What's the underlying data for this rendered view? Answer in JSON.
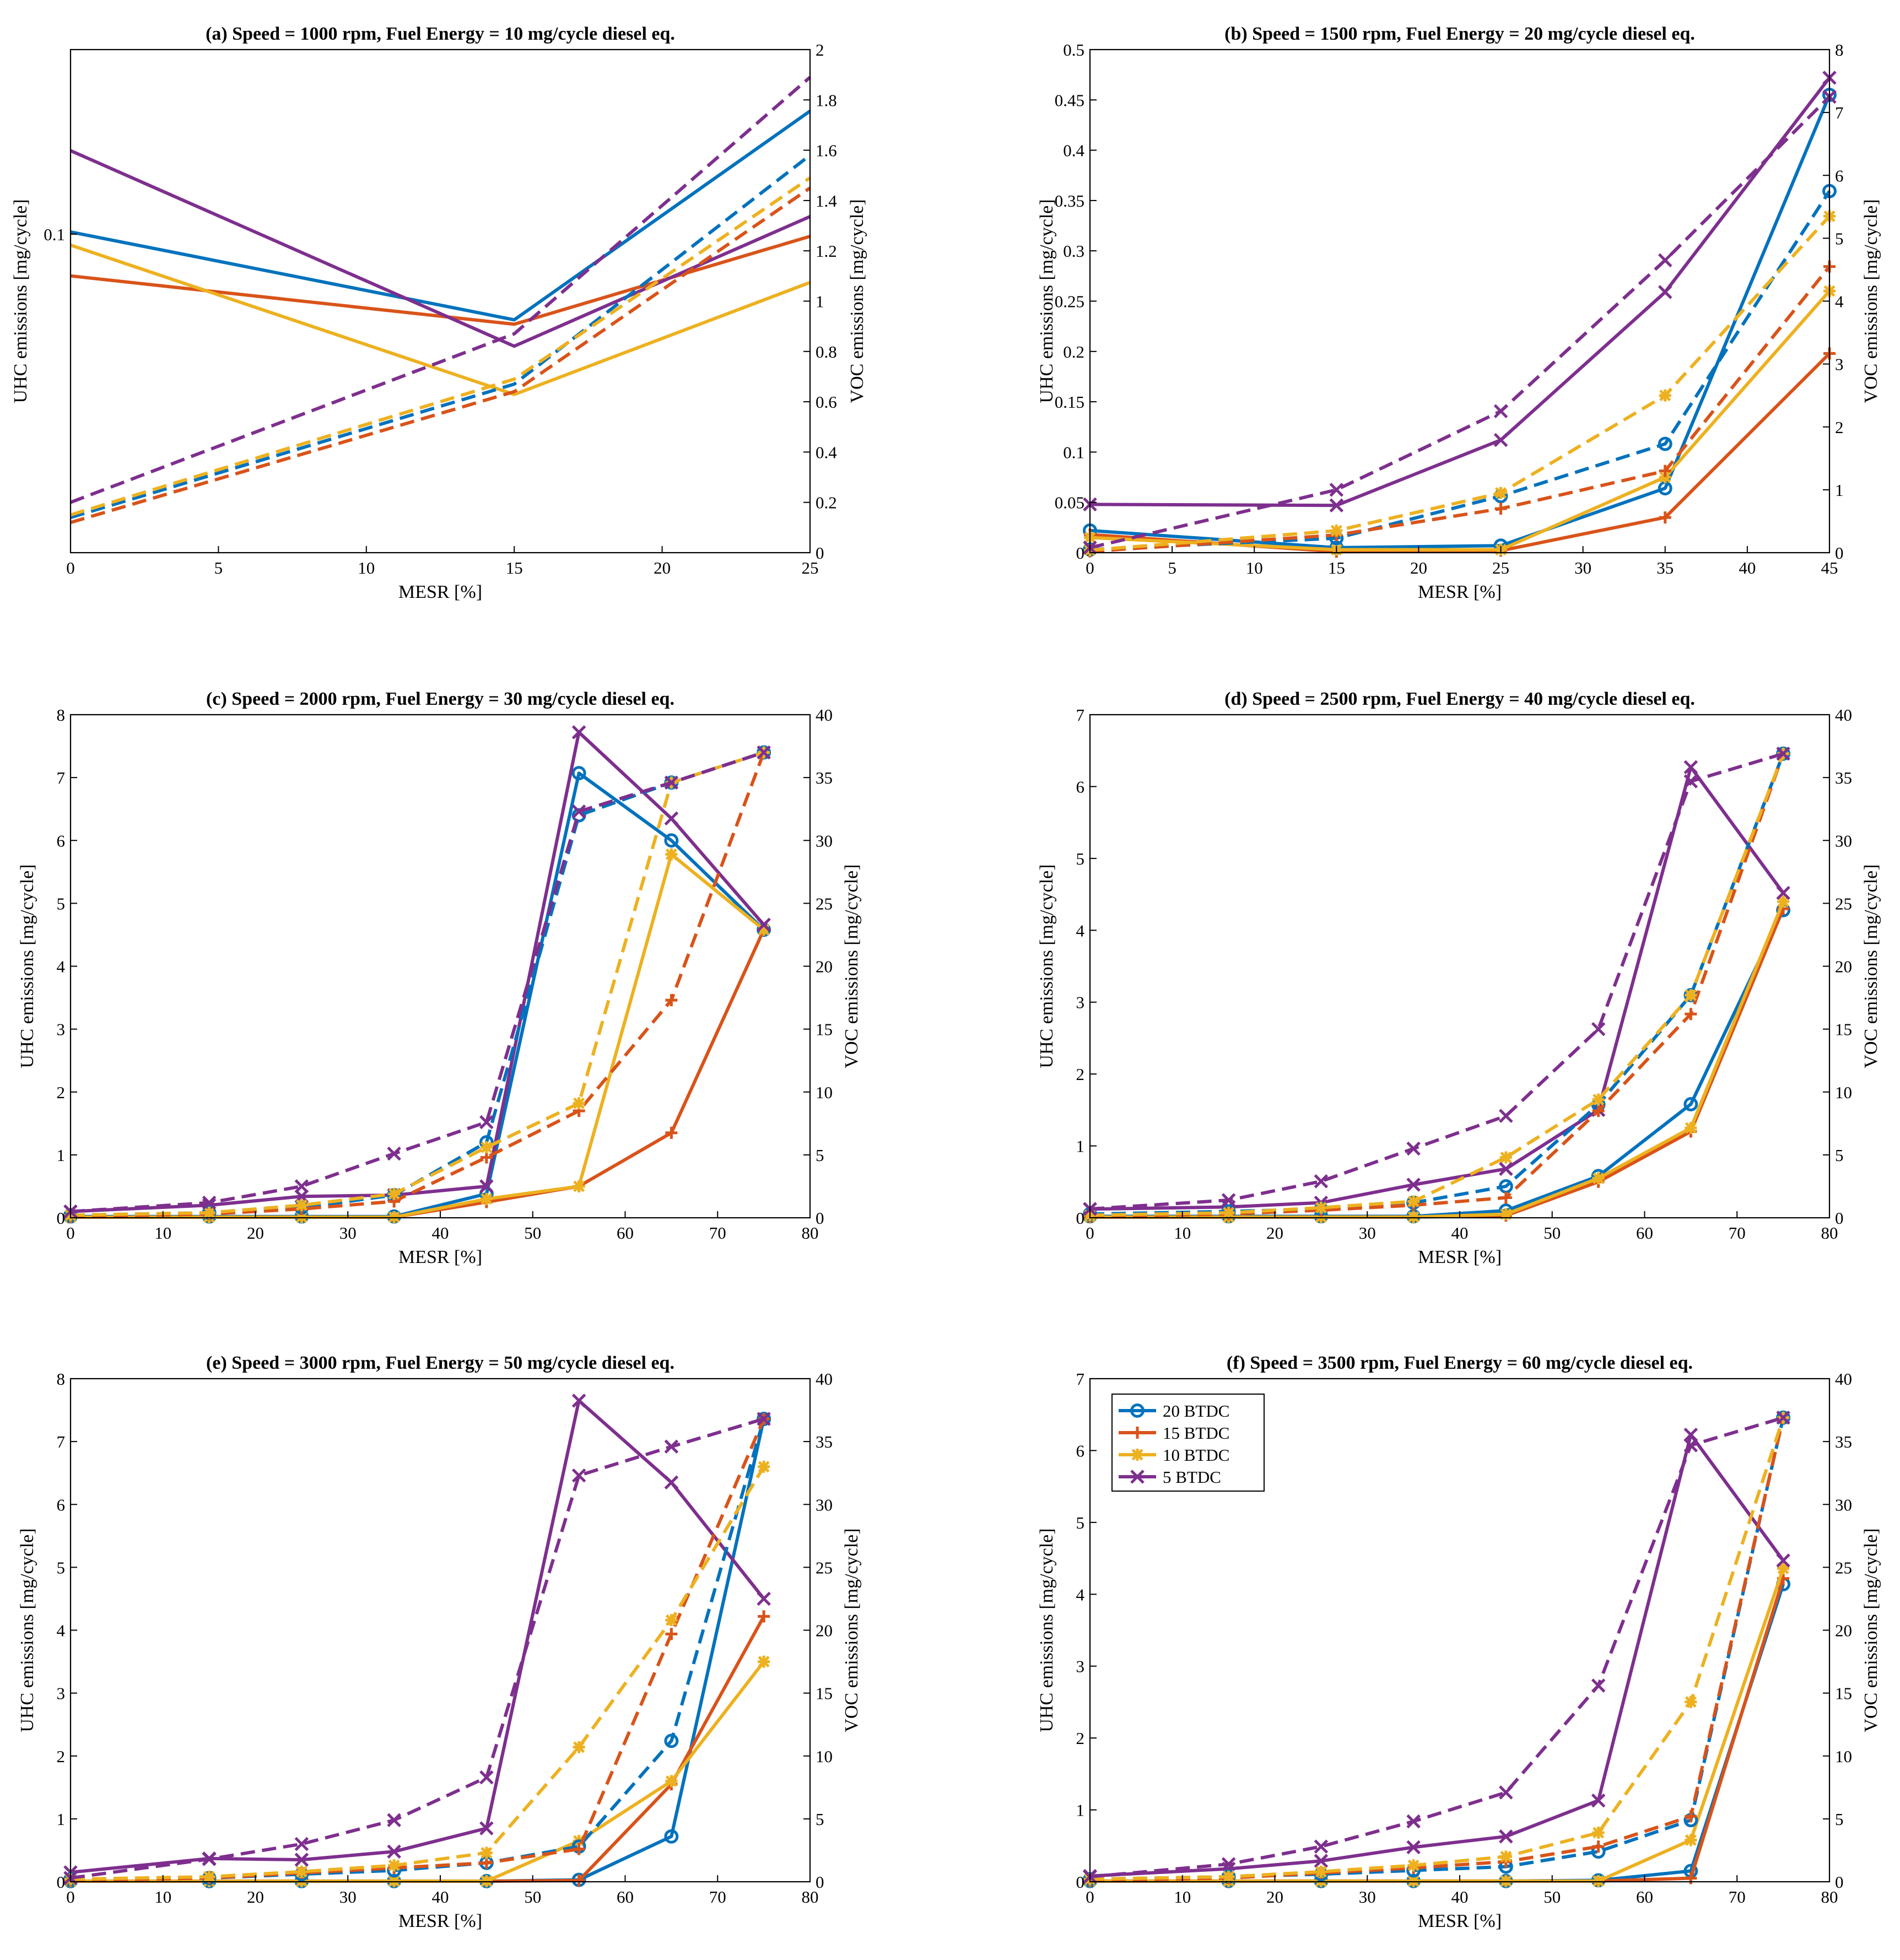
{
  "colors": {
    "20 BTDC": "#0072BD",
    "15 BTDC": "#D95319",
    "10 BTDC": "#EDB120",
    "5 BTDC": "#7E2F8E"
  },
  "legend": {
    "entries": [
      "20 BTDC",
      "15 BTDC",
      "10 BTDC",
      "5 BTDC"
    ],
    "markers": [
      "circle",
      "plus",
      "asterisk",
      "x"
    ],
    "placement": "upper-left of panel (f)"
  },
  "line_styles": {
    "solid": "UHC emissions (left axis)",
    "dashed": "VOC emissions (right axis)"
  },
  "chart_data": [
    {
      "type": "line",
      "title": "(a) Speed = 1000 rpm, Fuel Energy = 10 mg/cycle diesel eq.",
      "xlabel": "MESR [%]",
      "ylabel": "UHC emissions [mg/cycle]",
      "y2label": "VOC emissions [mg/cycle]",
      "xlim": [
        0,
        25
      ],
      "xticks": [
        "0",
        "5",
        "10",
        "15",
        "20",
        "25"
      ],
      "ylim": [
        0.0855,
        0.1084
      ],
      "yticks": [
        0.1
      ],
      "yticklabels": [
        "0.1"
      ],
      "y2lim": [
        0,
        2
      ],
      "y2ticks": [
        "0",
        "0.2",
        "0.4",
        "0.6",
        "0.8",
        "1",
        "1.2",
        "1.4",
        "1.6",
        "1.8",
        "2"
      ],
      "x": [
        0,
        15,
        25
      ],
      "markers_shown": false,
      "uhc": [
        {
          "name": "20 BTDC",
          "values": [
            0.1001,
            0.0961,
            0.1056
          ]
        },
        {
          "name": "15 BTDC",
          "values": [
            0.0981,
            0.0959,
            0.0999
          ]
        },
        {
          "name": "10 BTDC",
          "values": [
            0.0995,
            0.0927,
            0.0978
          ]
        },
        {
          "name": "5 BTDC",
          "values": [
            0.1038,
            0.0949,
            0.1008
          ]
        }
      ],
      "voc": [
        {
          "name": "20 BTDC",
          "values": [
            0.14,
            0.67,
            1.58
          ]
        },
        {
          "name": "15 BTDC",
          "values": [
            0.12,
            0.64,
            1.45
          ]
        },
        {
          "name": "10 BTDC",
          "values": [
            0.15,
            0.69,
            1.49
          ]
        },
        {
          "name": "5 BTDC",
          "values": [
            0.2,
            0.87,
            1.89
          ]
        }
      ]
    },
    {
      "type": "line",
      "title": "(b) Speed = 1500 rpm, Fuel Energy = 20 mg/cycle diesel eq.",
      "xlabel": "MESR [%]",
      "ylabel": "UHC emissions [mg/cycle]",
      "y2label": "VOC emissions [mg/cycle]",
      "xlim": [
        0,
        45
      ],
      "xticks": [
        "0",
        "5",
        "10",
        "15",
        "20",
        "25",
        "30",
        "35",
        "40",
        "45"
      ],
      "ylim": [
        0,
        0.5
      ],
      "yticks": [
        0,
        0.05,
        0.1,
        0.15,
        0.2,
        0.25,
        0.3,
        0.35,
        0.4,
        0.45,
        0.5
      ],
      "yticklabels": [
        "0",
        "0.05",
        "0.1",
        "0.15",
        "0.2",
        "0.25",
        "0.3",
        "0.35",
        "0.4",
        "0.45",
        "0.5"
      ],
      "y2lim": [
        0,
        8
      ],
      "y2ticks": [
        "0",
        "1",
        "2",
        "3",
        "4",
        "5",
        "6",
        "7",
        "8"
      ],
      "x": [
        0,
        15,
        25,
        35,
        45
      ],
      "markers_shown": true,
      "uhc": [
        {
          "name": "20 BTDC",
          "values": [
            0.022,
            0.005,
            0.007,
            0.064,
            0.455
          ]
        },
        {
          "name": "15 BTDC",
          "values": [
            0.018,
            0.001,
            0.002,
            0.035,
            0.198
          ]
        },
        {
          "name": "10 BTDC",
          "values": [
            0.015,
            0.003,
            0.003,
            0.075,
            0.26
          ]
        },
        {
          "name": "5 BTDC",
          "values": [
            0.048,
            0.047,
            0.112,
            0.259,
            0.472
          ]
        }
      ],
      "voc": [
        {
          "name": "20 BTDC",
          "values": [
            0.05,
            0.23,
            0.9,
            1.73,
            5.75
          ]
        },
        {
          "name": "15 BTDC",
          "values": [
            0.02,
            0.28,
            0.7,
            1.3,
            4.55
          ]
        },
        {
          "name": "10 BTDC",
          "values": [
            0.04,
            0.35,
            0.95,
            2.5,
            5.35
          ]
        },
        {
          "name": "5 BTDC",
          "values": [
            0.08,
            1.0,
            2.25,
            4.65,
            7.25
          ]
        }
      ]
    },
    {
      "type": "line",
      "title": "(c) Speed = 2000 rpm, Fuel Energy = 30 mg/cycle diesel eq.",
      "xlabel": "MESR [%]",
      "ylabel": "UHC emissions [mg/cycle]",
      "y2label": "VOC emissions [mg/cycle]",
      "xlim": [
        0,
        80
      ],
      "xticks": [
        "0",
        "10",
        "20",
        "30",
        "40",
        "50",
        "60",
        "70",
        "80"
      ],
      "ylim": [
        0,
        8
      ],
      "yticks": [
        0,
        1,
        2,
        3,
        4,
        5,
        6,
        7,
        8
      ],
      "yticklabels": [
        "0",
        "1",
        "2",
        "3",
        "4",
        "5",
        "6",
        "7",
        "8"
      ],
      "y2lim": [
        0,
        40
      ],
      "y2ticks": [
        "0",
        "5",
        "10",
        "15",
        "20",
        "25",
        "30",
        "35",
        "40"
      ],
      "x": [
        0,
        15,
        25,
        35,
        45,
        55,
        65,
        75
      ],
      "markers_shown": true,
      "uhc": [
        {
          "name": "20 BTDC",
          "values": [
            0.02,
            0.02,
            0.02,
            0.02,
            0.38,
            7.07,
            6.0,
            4.58
          ]
        },
        {
          "name": "15 BTDC",
          "values": [
            0.01,
            0.01,
            0.01,
            0.01,
            0.25,
            0.5,
            1.35,
            4.58
          ]
        },
        {
          "name": "10 BTDC",
          "values": [
            0.01,
            0.01,
            0.01,
            0.01,
            0.3,
            0.5,
            5.78,
            4.58
          ]
        },
        {
          "name": "5 BTDC",
          "values": [
            0.1,
            0.2,
            0.34,
            0.36,
            0.5,
            7.72,
            6.35,
            4.66
          ]
        }
      ],
      "voc": [
        {
          "name": "20 BTDC",
          "values": [
            0.2,
            0.4,
            0.8,
            1.8,
            6.0,
            32.0,
            34.6,
            37.0
          ]
        },
        {
          "name": "15 BTDC",
          "values": [
            0.1,
            0.3,
            0.7,
            1.3,
            4.8,
            8.5,
            17.3,
            37.0
          ]
        },
        {
          "name": "10 BTDC",
          "values": [
            0.2,
            0.4,
            1.0,
            1.9,
            5.6,
            9.1,
            34.6,
            37.0
          ]
        },
        {
          "name": "5 BTDC",
          "values": [
            0.5,
            1.2,
            2.5,
            5.1,
            7.6,
            32.3,
            34.6,
            37.0
          ]
        }
      ]
    },
    {
      "type": "line",
      "title": "(d) Speed = 2500 rpm, Fuel Energy = 40 mg/cycle diesel eq.",
      "xlabel": "MESR [%]",
      "ylabel": "UHC emissions [mg/cycle]",
      "y2label": "VOC emissions [mg/cycle]",
      "xlim": [
        0,
        80
      ],
      "xticks": [
        "0",
        "10",
        "20",
        "30",
        "40",
        "50",
        "60",
        "70",
        "80"
      ],
      "ylim": [
        0,
        7
      ],
      "yticks": [
        0,
        1,
        2,
        3,
        4,
        5,
        6,
        7
      ],
      "yticklabels": [
        "0",
        "1",
        "2",
        "3",
        "4",
        "5",
        "6",
        "7"
      ],
      "y2lim": [
        0,
        40
      ],
      "y2ticks": [
        "0",
        "5",
        "10",
        "15",
        "20",
        "25",
        "30",
        "35",
        "40"
      ],
      "x": [
        0,
        15,
        25,
        35,
        45,
        55,
        65,
        75
      ],
      "markers_shown": true,
      "uhc": [
        {
          "name": "20 BTDC",
          "values": [
            0.02,
            0.02,
            0.02,
            0.02,
            0.1,
            0.58,
            1.58,
            4.28
          ]
        },
        {
          "name": "15 BTDC",
          "values": [
            0.01,
            0.01,
            0.01,
            0.01,
            0.03,
            0.5,
            1.2,
            4.3
          ]
        },
        {
          "name": "10 BTDC",
          "values": [
            0.01,
            0.01,
            0.01,
            0.01,
            0.05,
            0.55,
            1.25,
            4.4
          ]
        },
        {
          "name": "5 BTDC",
          "values": [
            0.12,
            0.15,
            0.21,
            0.46,
            0.68,
            1.5,
            6.27,
            4.52
          ]
        }
      ],
      "voc": [
        {
          "name": "20 BTDC",
          "values": [
            0.3,
            0.5,
            0.7,
            1.2,
            2.5,
            9.0,
            17.7,
            36.9
          ]
        },
        {
          "name": "15 BTDC",
          "values": [
            0.1,
            0.3,
            0.6,
            1.0,
            1.6,
            8.5,
            16.2,
            36.9
          ]
        },
        {
          "name": "10 BTDC",
          "values": [
            0.2,
            0.4,
            0.8,
            1.3,
            4.8,
            9.4,
            17.7,
            36.9
          ]
        },
        {
          "name": "5 BTDC",
          "values": [
            0.7,
            1.4,
            2.9,
            5.5,
            8.1,
            15.0,
            34.7,
            36.9
          ]
        }
      ]
    },
    {
      "type": "line",
      "title": "(e) Speed = 3000 rpm, Fuel Energy = 50 mg/cycle diesel eq.",
      "xlabel": "MESR [%]",
      "ylabel": "UHC emissions [mg/cycle]",
      "y2label": "VOC emissions [mg/cycle]",
      "xlim": [
        0,
        80
      ],
      "xticks": [
        "0",
        "10",
        "20",
        "30",
        "40",
        "50",
        "60",
        "70",
        "80"
      ],
      "ylim": [
        0,
        8
      ],
      "yticks": [
        0,
        1,
        2,
        3,
        4,
        5,
        6,
        7,
        8
      ],
      "yticklabels": [
        "0",
        "1",
        "2",
        "3",
        "4",
        "5",
        "6",
        "7",
        "8"
      ],
      "y2lim": [
        0,
        40
      ],
      "y2ticks": [
        "0",
        "5",
        "10",
        "15",
        "20",
        "25",
        "30",
        "35",
        "40"
      ],
      "x": [
        0,
        15,
        25,
        35,
        45,
        55,
        65,
        75
      ],
      "markers_shown": true,
      "uhc": [
        {
          "name": "20 BTDC",
          "values": [
            0.01,
            0.01,
            0.01,
            0.01,
            0.01,
            0.03,
            0.72,
            7.36
          ]
        },
        {
          "name": "15 BTDC",
          "values": [
            0.01,
            0.01,
            0.01,
            0.01,
            0.01,
            0.02,
            1.55,
            4.22
          ]
        },
        {
          "name": "10 BTDC",
          "values": [
            0.01,
            0.01,
            0.01,
            0.01,
            0.01,
            0.65,
            1.6,
            3.5
          ]
        },
        {
          "name": "5 BTDC",
          "values": [
            0.15,
            0.37,
            0.35,
            0.48,
            0.85,
            7.65,
            6.35,
            4.5
          ]
        }
      ],
      "voc": [
        {
          "name": "20 BTDC",
          "values": [
            0.2,
            0.3,
            0.6,
            0.9,
            1.5,
            2.8,
            11.2,
            36.8
          ]
        },
        {
          "name": "15 BTDC",
          "values": [
            0.1,
            0.3,
            0.7,
            1.1,
            1.5,
            2.6,
            19.7,
            36.8
          ]
        },
        {
          "name": "10 BTDC",
          "values": [
            0.2,
            0.4,
            0.8,
            1.3,
            2.3,
            10.7,
            20.8,
            33.0
          ]
        },
        {
          "name": "5 BTDC",
          "values": [
            0.3,
            1.8,
            3.0,
            4.9,
            8.3,
            32.3,
            34.6,
            36.8
          ]
        }
      ]
    },
    {
      "type": "line",
      "title": "(f) Speed = 3500 rpm, Fuel Energy = 60 mg/cycle diesel eq.",
      "xlabel": "MESR [%]",
      "ylabel": "UHC emissions [mg/cycle]",
      "y2label": "VOC emissions [mg/cycle]",
      "xlim": [
        0,
        80
      ],
      "xticks": [
        "0",
        "10",
        "20",
        "30",
        "40",
        "50",
        "60",
        "70",
        "80"
      ],
      "ylim": [
        0,
        7
      ],
      "yticks": [
        0,
        1,
        2,
        3,
        4,
        5,
        6,
        7
      ],
      "yticklabels": [
        "0",
        "1",
        "2",
        "3",
        "4",
        "5",
        "6",
        "7"
      ],
      "y2lim": [
        0,
        40
      ],
      "y2ticks": [
        "0",
        "5",
        "10",
        "15",
        "20",
        "25",
        "30",
        "35",
        "40"
      ],
      "x": [
        0,
        15,
        25,
        35,
        45,
        55,
        65,
        75
      ],
      "markers_shown": true,
      "uhc": [
        {
          "name": "20 BTDC",
          "values": [
            0.01,
            0.01,
            0.01,
            0.01,
            0.01,
            0.02,
            0.15,
            4.14
          ]
        },
        {
          "name": "15 BTDC",
          "values": [
            0.01,
            0.01,
            0.01,
            0.01,
            0.01,
            0.01,
            0.05,
            4.22
          ]
        },
        {
          "name": "10 BTDC",
          "values": [
            0.01,
            0.01,
            0.01,
            0.01,
            0.01,
            0.01,
            0.58,
            4.36
          ]
        },
        {
          "name": "5 BTDC",
          "values": [
            0.08,
            0.18,
            0.29,
            0.48,
            0.63,
            1.13,
            6.22,
            4.47
          ]
        }
      ],
      "voc": [
        {
          "name": "20 BTDC",
          "values": [
            0.2,
            0.4,
            0.6,
            0.9,
            1.2,
            2.4,
            4.9,
            36.9
          ]
        },
        {
          "name": "15 BTDC",
          "values": [
            0.1,
            0.3,
            0.7,
            1.1,
            1.6,
            2.8,
            5.2,
            36.9
          ]
        },
        {
          "name": "10 BTDC",
          "values": [
            0.2,
            0.4,
            0.8,
            1.3,
            2.0,
            3.9,
            14.3,
            36.9
          ]
        },
        {
          "name": "5 BTDC",
          "values": [
            0.4,
            1.4,
            2.8,
            4.8,
            7.1,
            15.6,
            34.7,
            36.9
          ]
        }
      ]
    }
  ]
}
